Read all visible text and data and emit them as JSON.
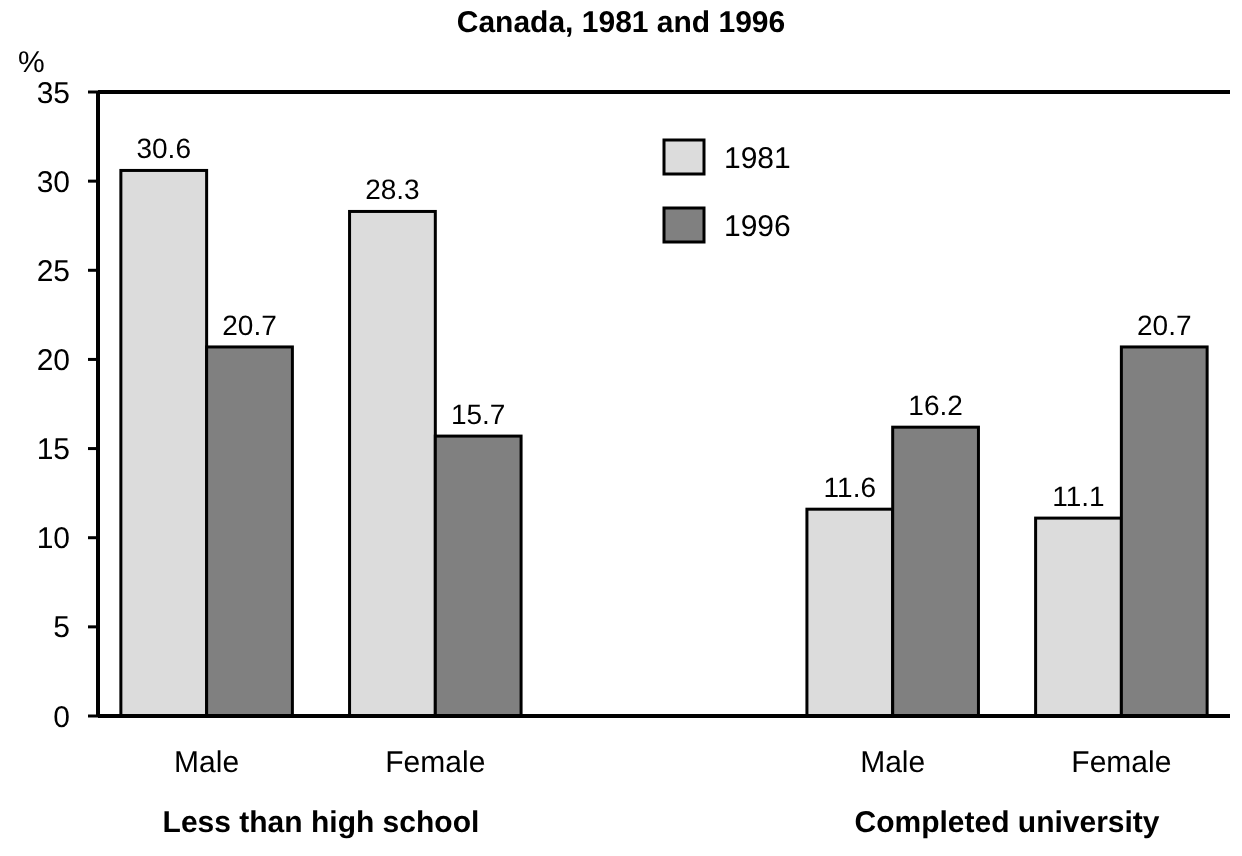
{
  "chart_data": {
    "type": "bar",
    "title": "Canada, 1981 and 1996",
    "ylabel": "%",
    "categories": [
      "Male",
      "Female",
      null,
      "Male",
      "Female"
    ],
    "series": [
      {
        "name": "1981",
        "color": "#dcdcdc",
        "values": [
          30.6,
          28.3,
          null,
          11.6,
          11.1
        ]
      },
      {
        "name": "1996",
        "color": "#808080",
        "values": [
          20.7,
          15.7,
          null,
          16.2,
          20.7
        ]
      }
    ],
    "ylim": [
      0,
      35
    ],
    "yticks": [
      0,
      5,
      10,
      15,
      20,
      25,
      30,
      35
    ],
    "grid": false,
    "legend": "top",
    "data_labels": true,
    "annotations": [
      "Less than high school",
      "Completed university"
    ]
  }
}
